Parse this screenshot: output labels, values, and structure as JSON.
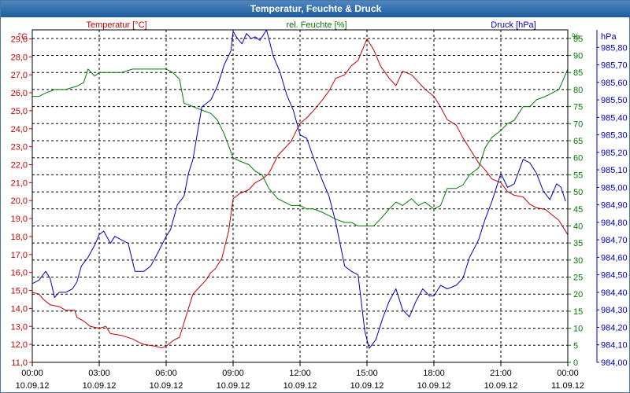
{
  "window": {
    "title": "Temperatur, Feuchte & Druck"
  },
  "colors": {
    "temperature": "#c00000",
    "humidity": "#007a00",
    "pressure": "#0000c0",
    "grid": "#000000"
  },
  "chart_data": {
    "type": "line",
    "title": "Temperatur, Feuchte & Druck",
    "grid": true,
    "x": {
      "range_hours": [
        0,
        24
      ],
      "ticks": [
        {
          "time": "00:00",
          "date": "10.09.12"
        },
        {
          "time": "03:00",
          "date": "10.09.12"
        },
        {
          "time": "06:00",
          "date": "10.09.12"
        },
        {
          "time": "09:00",
          "date": "10.09.12"
        },
        {
          "time": "12:00",
          "date": "10.09.12"
        },
        {
          "time": "15:00",
          "date": "10.09.12"
        },
        {
          "time": "18:00",
          "date": "10.09.12"
        },
        {
          "time": "21:00",
          "date": "10.09.12"
        },
        {
          "time": "00:00",
          "date": "11.09.12"
        }
      ]
    },
    "axes": {
      "temperature": {
        "label": "Temperatur [°C]",
        "unit": "°C",
        "range": [
          11.0,
          29.5
        ],
        "ticks": [
          "11,0",
          "12,0",
          "13,0",
          "14,0",
          "15,0",
          "16,0",
          "17,0",
          "18,0",
          "19,0",
          "20,0",
          "21,0",
          "22,0",
          "23,0",
          "24,0",
          "25,0",
          "26,0",
          "27,0",
          "28,0",
          "29,0"
        ]
      },
      "humidity": {
        "label": "rel. Feuchte [%]",
        "unit": "%",
        "range": [
          0,
          97.5
        ],
        "ticks": [
          "0",
          "5",
          "10",
          "15",
          "20",
          "25",
          "30",
          "35",
          "40",
          "45",
          "50",
          "55",
          "60",
          "65",
          "70",
          "75",
          "80",
          "85",
          "90",
          "95"
        ]
      },
      "pressure": {
        "label": "Druck [hPa]",
        "unit": "hPa",
        "range": [
          984.0,
          985.9
        ],
        "ticks": [
          "984,00",
          "984,10",
          "984,20",
          "984,30",
          "984,40",
          "984,50",
          "984,60",
          "984,70",
          "984,80",
          "984,90",
          "985,00",
          "985,10",
          "985,20",
          "985,30",
          "985,40",
          "985,50",
          "985,60",
          "985,70",
          "985,80"
        ]
      }
    },
    "series": [
      {
        "name": "Temperatur [°C]",
        "axis": "temperature",
        "points": [
          [
            0,
            14.9
          ],
          [
            0.3,
            14.8
          ],
          [
            0.5,
            14.5
          ],
          [
            0.8,
            14.2
          ],
          [
            1.2,
            14.1
          ],
          [
            1.5,
            13.9
          ],
          [
            1.9,
            13.9
          ],
          [
            2.0,
            13.5
          ],
          [
            2.3,
            13.3
          ],
          [
            2.6,
            13.0
          ],
          [
            3.0,
            12.9
          ],
          [
            3.3,
            13.0
          ],
          [
            3.5,
            12.6
          ],
          [
            4.0,
            12.5
          ],
          [
            4.5,
            12.3
          ],
          [
            4.8,
            12.1
          ],
          [
            5.0,
            12.0
          ],
          [
            5.5,
            11.9
          ],
          [
            5.8,
            11.8
          ],
          [
            6.0,
            11.9
          ],
          [
            6.3,
            12.2
          ],
          [
            6.6,
            12.4
          ],
          [
            7.0,
            14.0
          ],
          [
            7.2,
            14.8
          ],
          [
            7.5,
            15.2
          ],
          [
            7.8,
            15.6
          ],
          [
            8.0,
            16.0
          ],
          [
            8.2,
            16.2
          ],
          [
            8.5,
            16.8
          ],
          [
            8.8,
            18.3
          ],
          [
            9.0,
            20.1
          ],
          [
            9.3,
            20.4
          ],
          [
            9.7,
            20.6
          ],
          [
            10.0,
            21.0
          ],
          [
            10.3,
            21.2
          ],
          [
            10.6,
            21.5
          ],
          [
            11.0,
            22.5
          ],
          [
            11.3,
            22.9
          ],
          [
            11.6,
            23.3
          ],
          [
            12.0,
            24.3
          ],
          [
            12.3,
            24.6
          ],
          [
            12.6,
            25.0
          ],
          [
            13.0,
            25.6
          ],
          [
            13.3,
            26.1
          ],
          [
            13.6,
            26.8
          ],
          [
            14.0,
            27.0
          ],
          [
            14.3,
            27.5
          ],
          [
            14.6,
            27.8
          ],
          [
            15.0,
            29.0
          ],
          [
            15.3,
            28.4
          ],
          [
            15.6,
            27.5
          ],
          [
            16.0,
            26.8
          ],
          [
            16.3,
            26.4
          ],
          [
            16.6,
            27.2
          ],
          [
            17.0,
            27.0
          ],
          [
            17.3,
            26.6
          ],
          [
            17.6,
            26.2
          ],
          [
            18.0,
            25.8
          ],
          [
            18.3,
            25.2
          ],
          [
            18.6,
            24.5
          ],
          [
            19.0,
            24.2
          ],
          [
            19.3,
            23.5
          ],
          [
            19.6,
            22.9
          ],
          [
            20.0,
            22.1
          ],
          [
            20.3,
            21.7
          ],
          [
            20.6,
            21.2
          ],
          [
            21.0,
            21.0
          ],
          [
            21.3,
            20.5
          ],
          [
            21.6,
            20.3
          ],
          [
            22.0,
            20.2
          ],
          [
            22.3,
            19.8
          ],
          [
            22.6,
            19.6
          ],
          [
            23.0,
            19.5
          ],
          [
            23.3,
            19.2
          ],
          [
            23.6,
            18.9
          ],
          [
            24.0,
            18.1
          ]
        ]
      },
      {
        "name": "rel. Feuchte [%]",
        "axis": "humidity",
        "points": [
          [
            0,
            78
          ],
          [
            0.3,
            78
          ],
          [
            0.6,
            79
          ],
          [
            1.0,
            80
          ],
          [
            1.5,
            80
          ],
          [
            2.0,
            81
          ],
          [
            2.3,
            82
          ],
          [
            2.5,
            86
          ],
          [
            2.8,
            84
          ],
          [
            3.0,
            85
          ],
          [
            3.5,
            85
          ],
          [
            4.0,
            85
          ],
          [
            4.5,
            86
          ],
          [
            5.0,
            86
          ],
          [
            5.5,
            86
          ],
          [
            6.0,
            86
          ],
          [
            6.3,
            85
          ],
          [
            6.6,
            83
          ],
          [
            6.8,
            76
          ],
          [
            7.2,
            75
          ],
          [
            7.6,
            74
          ],
          [
            8.0,
            73
          ],
          [
            8.3,
            71
          ],
          [
            8.6,
            67
          ],
          [
            9.0,
            60
          ],
          [
            9.3,
            59
          ],
          [
            9.7,
            58
          ],
          [
            10.0,
            56
          ],
          [
            10.3,
            55
          ],
          [
            10.6,
            51
          ],
          [
            11.0,
            48
          ],
          [
            11.3,
            47
          ],
          [
            11.6,
            46
          ],
          [
            12.0,
            46
          ],
          [
            12.3,
            45
          ],
          [
            12.6,
            45
          ],
          [
            13.0,
            44
          ],
          [
            13.3,
            43
          ],
          [
            13.6,
            42
          ],
          [
            14.0,
            41
          ],
          [
            14.3,
            41
          ],
          [
            14.6,
            40
          ],
          [
            15.0,
            40
          ],
          [
            15.3,
            40
          ],
          [
            15.6,
            42
          ],
          [
            16.0,
            45
          ],
          [
            16.3,
            47
          ],
          [
            16.6,
            46
          ],
          [
            17.0,
            48
          ],
          [
            17.3,
            46
          ],
          [
            17.6,
            47
          ],
          [
            18.0,
            45
          ],
          [
            18.3,
            46
          ],
          [
            18.6,
            51
          ],
          [
            19.0,
            51
          ],
          [
            19.3,
            52
          ],
          [
            19.6,
            55
          ],
          [
            20.0,
            57
          ],
          [
            20.3,
            63
          ],
          [
            20.6,
            66
          ],
          [
            21.0,
            68
          ],
          [
            21.3,
            70
          ],
          [
            21.6,
            71
          ],
          [
            22.0,
            75
          ],
          [
            22.3,
            75
          ],
          [
            22.6,
            77
          ],
          [
            23.0,
            78
          ],
          [
            23.3,
            79
          ],
          [
            23.6,
            80
          ],
          [
            24.0,
            86
          ]
        ]
      },
      {
        "name": "Druck [hPa]",
        "axis": "pressure",
        "points": [
          [
            0,
            984.45
          ],
          [
            0.3,
            984.47
          ],
          [
            0.6,
            984.52
          ],
          [
            0.8,
            984.48
          ],
          [
            1.0,
            984.37
          ],
          [
            1.2,
            984.4
          ],
          [
            1.5,
            984.4
          ],
          [
            1.8,
            984.42
          ],
          [
            2.0,
            984.46
          ],
          [
            2.2,
            984.55
          ],
          [
            2.5,
            984.6
          ],
          [
            2.8,
            984.67
          ],
          [
            3.0,
            984.73
          ],
          [
            3.2,
            984.75
          ],
          [
            3.5,
            984.68
          ],
          [
            3.7,
            984.72
          ],
          [
            4.0,
            984.7
          ],
          [
            4.3,
            984.68
          ],
          [
            4.6,
            984.52
          ],
          [
            5.0,
            984.52
          ],
          [
            5.3,
            984.55
          ],
          [
            5.6,
            984.62
          ],
          [
            6.0,
            984.72
          ],
          [
            6.2,
            984.76
          ],
          [
            6.5,
            984.9
          ],
          [
            6.8,
            984.95
          ],
          [
            7.0,
            985.08
          ],
          [
            7.2,
            985.16
          ],
          [
            7.6,
            985.46
          ],
          [
            8.0,
            985.5
          ],
          [
            8.3,
            985.58
          ],
          [
            8.6,
            985.7
          ],
          [
            8.9,
            985.78
          ],
          [
            9.0,
            985.89
          ],
          [
            9.2,
            985.85
          ],
          [
            9.4,
            985.82
          ],
          [
            9.6,
            985.88
          ],
          [
            9.8,
            985.85
          ],
          [
            10.0,
            985.86
          ],
          [
            10.2,
            985.84
          ],
          [
            10.5,
            985.9
          ],
          [
            10.8,
            985.75
          ],
          [
            11.1,
            985.66
          ],
          [
            11.4,
            985.53
          ],
          [
            11.7,
            985.44
          ],
          [
            12.0,
            985.3
          ],
          [
            12.3,
            985.28
          ],
          [
            12.6,
            985.17
          ],
          [
            13.0,
            985.04
          ],
          [
            13.3,
            984.95
          ],
          [
            13.6,
            984.8
          ],
          [
            14.0,
            984.55
          ],
          [
            14.3,
            984.52
          ],
          [
            14.6,
            984.5
          ],
          [
            14.9,
            984.18
          ],
          [
            15.1,
            984.08
          ],
          [
            15.4,
            984.13
          ],
          [
            15.7,
            984.25
          ],
          [
            16.0,
            984.35
          ],
          [
            16.3,
            984.42
          ],
          [
            16.6,
            984.3
          ],
          [
            16.9,
            984.26
          ],
          [
            17.2,
            984.35
          ],
          [
            17.5,
            984.42
          ],
          [
            17.8,
            984.38
          ],
          [
            18.0,
            984.38
          ],
          [
            18.3,
            984.44
          ],
          [
            18.6,
            984.42
          ],
          [
            19.0,
            984.44
          ],
          [
            19.3,
            984.48
          ],
          [
            19.6,
            984.6
          ],
          [
            20.0,
            984.7
          ],
          [
            20.3,
            984.82
          ],
          [
            20.6,
            984.92
          ],
          [
            21.0,
            985.08
          ],
          [
            21.3,
            985.0
          ],
          [
            21.6,
            985.02
          ],
          [
            22.0,
            985.16
          ],
          [
            22.3,
            985.14
          ],
          [
            22.6,
            985.08
          ],
          [
            22.9,
            984.98
          ],
          [
            23.2,
            984.93
          ],
          [
            23.5,
            985.02
          ],
          [
            23.7,
            985.0
          ],
          [
            23.9,
            984.92
          ]
        ]
      }
    ]
  }
}
